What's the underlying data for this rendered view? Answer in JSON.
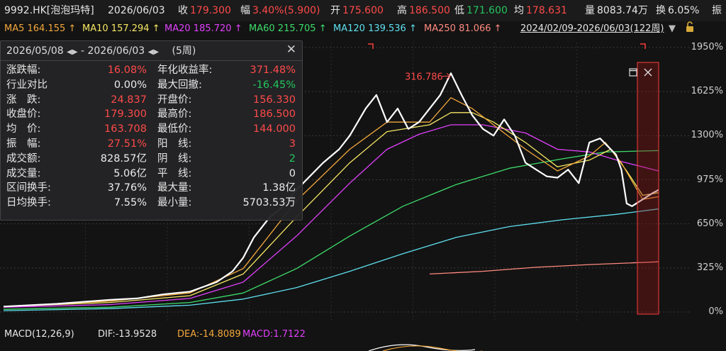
{
  "header": {
    "code": "9992.HK[泡泡玛特]",
    "date": "2026/06/03",
    "close_label": "收",
    "close_value": "179.300",
    "change_label": "幅",
    "change_value": "3.40%(5.900)",
    "open_label": "开",
    "open_value": "175.600",
    "high_label": "高",
    "high_value": "186.500",
    "low_label": "低",
    "low_value": "171.600",
    "avg_label": "均",
    "avg_value": "178.631",
    "volume_label": "量",
    "volume_value": "8083.74万",
    "turnover_label": "换",
    "turnover_value": "6.05%",
    "amplitude_label": "振"
  },
  "ma_bar": {
    "items": [
      {
        "label": "MA5",
        "value": "164.155",
        "color": "#f2a73b"
      },
      {
        "label": "MA10",
        "value": "157.294",
        "color": "#f5e663"
      },
      {
        "label": "MA20",
        "value": "185.720",
        "color": "#e040fb"
      },
      {
        "label": "MA60",
        "value": "215.705",
        "color": "#3ddc6a"
      },
      {
        "label": "MA120",
        "value": "139.536",
        "color": "#5ee0f0"
      },
      {
        "label": "MA250",
        "value": "81.066",
        "color": "#ff8a80"
      }
    ],
    "range": "2024/02/09-2026/06/03(122周)"
  },
  "info_panel": {
    "range_start": "2026/05/08",
    "range_end": "2026/06/03",
    "period": "(5周)",
    "left": [
      {
        "label": "涨跌幅:",
        "value": "16.08%",
        "color": "red"
      },
      {
        "label": "行业对比",
        "value": "0.00%",
        "color": "white"
      },
      {
        "label": "涨　跌:",
        "value": "24.837",
        "color": "red"
      },
      {
        "label": "收盘价:",
        "value": "179.300",
        "color": "red"
      },
      {
        "label": "均　价:",
        "value": "163.708",
        "color": "red"
      },
      {
        "label": "振　幅:",
        "value": "27.51%",
        "color": "red"
      },
      {
        "label": "成交额:",
        "value": "828.57亿",
        "color": "white"
      },
      {
        "label": "成交量:",
        "value": "5.06亿",
        "color": "white"
      },
      {
        "label": "区间换手:",
        "value": "37.76%",
        "color": "white"
      },
      {
        "label": "日均换手:",
        "value": "7.55%",
        "color": "white"
      }
    ],
    "right": [
      {
        "label": "年化收益率:",
        "value": "371.48%",
        "color": "red"
      },
      {
        "label": "最大回撤:",
        "value": "-16.45%",
        "color": "green"
      },
      {
        "label": "开盘价:",
        "value": "156.330",
        "color": "red"
      },
      {
        "label": "最高价:",
        "value": "186.500",
        "color": "red"
      },
      {
        "label": "最低价:",
        "value": "144.000",
        "color": "red"
      },
      {
        "label": "阳　线:",
        "value": "3",
        "color": "red"
      },
      {
        "label": "阴　线:",
        "value": "2",
        "color": "green"
      },
      {
        "label": "平　线:",
        "value": "0",
        "color": "white"
      },
      {
        "label": "最大量:",
        "value": "1.38亿",
        "color": "white"
      },
      {
        "label": "最小量:",
        "value": "5703.53万",
        "color": "white"
      }
    ]
  },
  "macd_bar": {
    "title": "MACD(12,26,9)",
    "dif": "DIF:-13.9528",
    "dea": "DEA:-14.8089",
    "macd": "MACD:1.7122"
  },
  "chart_data": {
    "type": "line",
    "ylim": [
      0,
      2000
    ],
    "y_ticks": [
      {
        "value": 1950,
        "label": "1950%"
      },
      {
        "value": 1625,
        "label": "1625%"
      },
      {
        "value": 1300,
        "label": "1300%"
      },
      {
        "value": 975,
        "label": "975%"
      },
      {
        "value": 650,
        "label": "650%"
      },
      {
        "value": 325,
        "label": "325%"
      },
      {
        "value": 0,
        "label": "0%"
      }
    ],
    "annotation": {
      "label": "316.786",
      "index": 84
    },
    "bars": 123,
    "series": [
      {
        "key": "price",
        "color": "#ffffff",
        "width": 2.2,
        "start": 0,
        "points": [
          [
            0,
            40
          ],
          [
            10,
            60
          ],
          [
            20,
            90
          ],
          [
            25,
            100
          ],
          [
            30,
            130
          ],
          [
            35,
            150
          ],
          [
            40,
            220
          ],
          [
            43,
            300
          ],
          [
            45,
            400
          ],
          [
            47,
            550
          ],
          [
            50,
            700
          ],
          [
            52,
            760
          ],
          [
            55,
            900
          ],
          [
            60,
            1100
          ],
          [
            63,
            1200
          ],
          [
            65,
            1300
          ],
          [
            68,
            1500
          ],
          [
            70,
            1600
          ],
          [
            72,
            1400
          ],
          [
            74,
            1500
          ],
          [
            76,
            1350
          ],
          [
            78,
            1400
          ],
          [
            80,
            1500
          ],
          [
            82,
            1600
          ],
          [
            84,
            1760
          ],
          [
            86,
            1600
          ],
          [
            88,
            1450
          ],
          [
            90,
            1350
          ],
          [
            92,
            1300
          ],
          [
            94,
            1420
          ],
          [
            96,
            1300
          ],
          [
            98,
            1100
          ],
          [
            100,
            1050
          ],
          [
            102,
            1000
          ],
          [
            104,
            990
          ],
          [
            106,
            1050
          ],
          [
            108,
            950
          ],
          [
            110,
            1250
          ],
          [
            112,
            1280
          ],
          [
            114,
            1200
          ],
          [
            115,
            1160
          ],
          [
            116,
            1050
          ],
          [
            117,
            800
          ],
          [
            118,
            780
          ],
          [
            120,
            830
          ],
          [
            122,
            880
          ],
          [
            123,
            900
          ]
        ]
      },
      {
        "key": "ma5",
        "color": "#f2a73b",
        "width": 1.3,
        "start": 0,
        "points": [
          [
            0,
            40
          ],
          [
            20,
            80
          ],
          [
            35,
            140
          ],
          [
            45,
            320
          ],
          [
            55,
            820
          ],
          [
            65,
            1200
          ],
          [
            72,
            1400
          ],
          [
            80,
            1400
          ],
          [
            84,
            1580
          ],
          [
            88,
            1500
          ],
          [
            92,
            1380
          ],
          [
            98,
            1200
          ],
          [
            104,
            1040
          ],
          [
            110,
            1150
          ],
          [
            113,
            1250
          ],
          [
            116,
            1100
          ],
          [
            120,
            830
          ],
          [
            123,
            850
          ]
        ]
      },
      {
        "key": "ma10",
        "color": "#f5e663",
        "width": 1.3,
        "start": 0,
        "points": [
          [
            0,
            40
          ],
          [
            20,
            70
          ],
          [
            35,
            120
          ],
          [
            45,
            280
          ],
          [
            55,
            700
          ],
          [
            65,
            1100
          ],
          [
            72,
            1330
          ],
          [
            80,
            1380
          ],
          [
            84,
            1470
          ],
          [
            88,
            1470
          ],
          [
            92,
            1400
          ],
          [
            98,
            1250
          ],
          [
            104,
            1070
          ],
          [
            110,
            1120
          ],
          [
            114,
            1200
          ],
          [
            117,
            1040
          ],
          [
            120,
            860
          ],
          [
            123,
            880
          ]
        ]
      },
      {
        "key": "ma20",
        "color": "#e040fb",
        "width": 1.3,
        "start": 0,
        "points": [
          [
            0,
            35
          ],
          [
            20,
            55
          ],
          [
            35,
            100
          ],
          [
            45,
            220
          ],
          [
            55,
            560
          ],
          [
            65,
            950
          ],
          [
            72,
            1200
          ],
          [
            78,
            1310
          ],
          [
            84,
            1380
          ],
          [
            90,
            1380
          ],
          [
            98,
            1320
          ],
          [
            104,
            1200
          ],
          [
            110,
            1180
          ],
          [
            116,
            1110
          ],
          [
            123,
            1040
          ]
        ]
      },
      {
        "key": "ma60",
        "color": "#3ddc6a",
        "width": 1.3,
        "start": 0,
        "points": [
          [
            0,
            20
          ],
          [
            20,
            35
          ],
          [
            35,
            70
          ],
          [
            45,
            140
          ],
          [
            55,
            320
          ],
          [
            65,
            560
          ],
          [
            75,
            780
          ],
          [
            85,
            940
          ],
          [
            95,
            1060
          ],
          [
            105,
            1130
          ],
          [
            113,
            1180
          ],
          [
            123,
            1190
          ]
        ]
      },
      {
        "key": "ma120",
        "color": "#5ee0f0",
        "width": 1.3,
        "start": 0,
        "points": [
          [
            0,
            10
          ],
          [
            20,
            25
          ],
          [
            35,
            50
          ],
          [
            45,
            95
          ],
          [
            55,
            180
          ],
          [
            65,
            300
          ],
          [
            75,
            430
          ],
          [
            85,
            550
          ],
          [
            95,
            630
          ],
          [
            105,
            680
          ],
          [
            115,
            720
          ],
          [
            123,
            760
          ]
        ]
      },
      {
        "key": "ma250",
        "color": "#ff8a80",
        "width": 1.3,
        "start": 80,
        "points": [
          [
            80,
            280
          ],
          [
            90,
            300
          ],
          [
            100,
            330
          ],
          [
            110,
            350
          ],
          [
            123,
            370
          ]
        ]
      }
    ]
  }
}
